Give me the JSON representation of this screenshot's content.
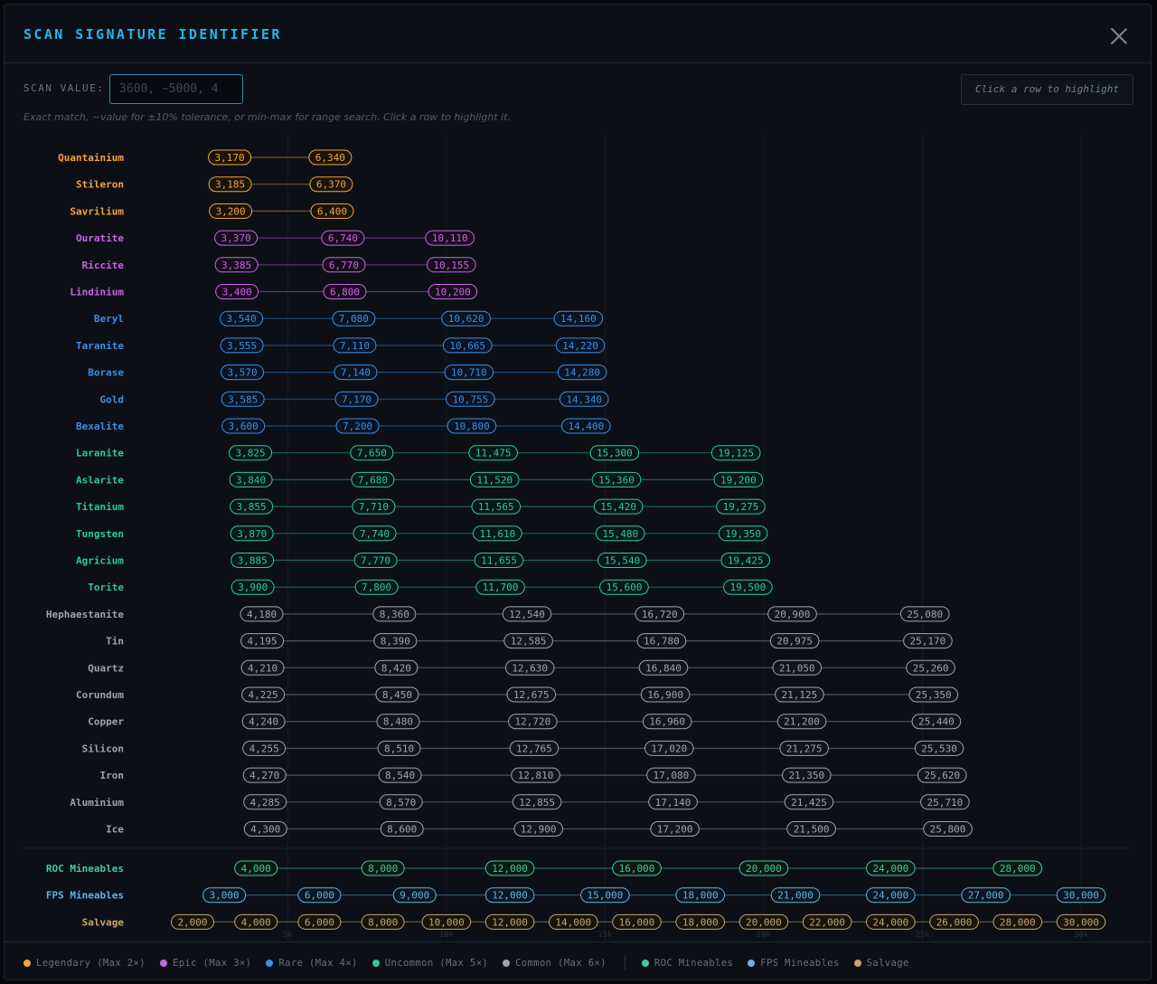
{
  "window": {
    "title": "SCAN SIGNATURE IDENTIFIER"
  },
  "search": {
    "label": "SCAN VALUE:",
    "placeholder": "3600, ~5000, 4",
    "value": ""
  },
  "hint": {
    "text": "Click a row to highlight"
  },
  "help": {
    "text": "Exact match, ~value for ±10% tolerance, or min-max for range search. Click a row to highlight it."
  },
  "colors": {
    "legendary": "#f2a53f",
    "epic": "#c865e6",
    "rare": "#3d8ee6",
    "uncommon": "#2ec99a",
    "common": "#9ba5af",
    "roc": "#46c99a",
    "fps": "#64b2e0",
    "salvage": "#c4a472"
  },
  "chart_data": {
    "type": "scatter",
    "x_ticks": [
      "5k",
      "10k",
      "15k",
      "20k",
      "25k",
      "30k"
    ],
    "x_tick_values": [
      5000,
      10000,
      15000,
      20000,
      25000,
      30000
    ],
    "rows": [
      {
        "name": "Quantainium",
        "tier": "legendary",
        "values": [
          3170,
          6340
        ]
      },
      {
        "name": "Stileron",
        "tier": "legendary",
        "values": [
          3185,
          6370
        ]
      },
      {
        "name": "Savrilium",
        "tier": "legendary",
        "values": [
          3200,
          6400
        ]
      },
      {
        "name": "Ouratite",
        "tier": "epic",
        "values": [
          3370,
          6740,
          10110
        ]
      },
      {
        "name": "Riccite",
        "tier": "epic",
        "values": [
          3385,
          6770,
          10155
        ]
      },
      {
        "name": "Lindinium",
        "tier": "epic",
        "values": [
          3400,
          6800,
          10200
        ]
      },
      {
        "name": "Beryl",
        "tier": "rare",
        "values": [
          3540,
          7080,
          10620,
          14160
        ]
      },
      {
        "name": "Taranite",
        "tier": "rare",
        "values": [
          3555,
          7110,
          10665,
          14220
        ]
      },
      {
        "name": "Borase",
        "tier": "rare",
        "values": [
          3570,
          7140,
          10710,
          14280
        ]
      },
      {
        "name": "Gold",
        "tier": "rare",
        "values": [
          3585,
          7170,
          10755,
          14340
        ]
      },
      {
        "name": "Bexalite",
        "tier": "rare",
        "values": [
          3600,
          7200,
          10800,
          14400
        ]
      },
      {
        "name": "Laranite",
        "tier": "uncommon",
        "values": [
          3825,
          7650,
          11475,
          15300,
          19125
        ]
      },
      {
        "name": "Aslarite",
        "tier": "uncommon",
        "values": [
          3840,
          7680,
          11520,
          15360,
          19200
        ]
      },
      {
        "name": "Titanium",
        "tier": "uncommon",
        "values": [
          3855,
          7710,
          11565,
          15420,
          19275
        ]
      },
      {
        "name": "Tungsten",
        "tier": "uncommon",
        "values": [
          3870,
          7740,
          11610,
          15480,
          19350
        ]
      },
      {
        "name": "Agricium",
        "tier": "uncommon",
        "values": [
          3885,
          7770,
          11655,
          15540,
          19425
        ]
      },
      {
        "name": "Torite",
        "tier": "uncommon",
        "values": [
          3900,
          7800,
          11700,
          15600,
          19500
        ]
      },
      {
        "name": "Hephaestanite",
        "tier": "common",
        "values": [
          4180,
          8360,
          12540,
          16720,
          20900,
          25080
        ]
      },
      {
        "name": "Tin",
        "tier": "common",
        "values": [
          4195,
          8390,
          12585,
          16780,
          20975,
          25170
        ]
      },
      {
        "name": "Quartz",
        "tier": "common",
        "values": [
          4210,
          8420,
          12630,
          16840,
          21050,
          25260
        ]
      },
      {
        "name": "Corundum",
        "tier": "common",
        "values": [
          4225,
          8450,
          12675,
          16900,
          21125,
          25350
        ]
      },
      {
        "name": "Copper",
        "tier": "common",
        "values": [
          4240,
          8480,
          12720,
          16960,
          21200,
          25440
        ]
      },
      {
        "name": "Silicon",
        "tier": "common",
        "values": [
          4255,
          8510,
          12765,
          17020,
          21275,
          25530
        ]
      },
      {
        "name": "Iron",
        "tier": "common",
        "values": [
          4270,
          8540,
          12810,
          17080,
          21350,
          25620
        ]
      },
      {
        "name": "Aluminium",
        "tier": "common",
        "values": [
          4285,
          8570,
          12855,
          17140,
          21425,
          25710
        ]
      },
      {
        "name": "Ice",
        "tier": "common",
        "values": [
          4300,
          8600,
          12900,
          17200,
          21500,
          25800
        ]
      },
      {
        "name": "ROC Mineables",
        "tier": "roc",
        "values": [
          4000,
          8000,
          12000,
          16000,
          20000,
          24000,
          28000
        ]
      },
      {
        "name": "FPS Mineables",
        "tier": "fps",
        "values": [
          3000,
          6000,
          9000,
          12000,
          15000,
          18000,
          21000,
          24000,
          27000,
          30000
        ]
      },
      {
        "name": "Salvage",
        "tier": "salvage",
        "values": [
          2000,
          4000,
          6000,
          8000,
          10000,
          12000,
          14000,
          16000,
          18000,
          20000,
          22000,
          24000,
          26000,
          28000,
          30000
        ]
      }
    ]
  },
  "legend": [
    {
      "label": "Legendary (Max 2×)",
      "tier": "legendary"
    },
    {
      "label": "Epic (Max 3×)",
      "tier": "epic"
    },
    {
      "label": "Rare (Max 4×)",
      "tier": "rare"
    },
    {
      "label": "Uncommon (Max 5×)",
      "tier": "uncommon"
    },
    {
      "label": "Common (Max 6×)",
      "tier": "common"
    },
    {
      "label": "ROC Mineables",
      "tier": "roc"
    },
    {
      "label": "FPS Mineables",
      "tier": "fps"
    },
    {
      "label": "Salvage",
      "tier": "salvage"
    }
  ]
}
